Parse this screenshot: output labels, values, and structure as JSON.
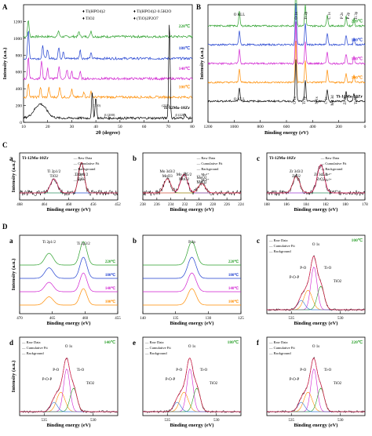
{
  "figure": {
    "section_labels": {
      "a": "A",
      "b": "B",
      "c": "C",
      "d": "D"
    }
  },
  "chart_data": [
    {
      "id": "A",
      "type": "line",
      "title": "",
      "xlabel": "2θ (degree)",
      "ylabel": "Intensity (a.u.)",
      "xlim": [
        10,
        80
      ],
      "ylim": [
        0,
        1400
      ],
      "x_ticks": [
        "10",
        "20",
        "30",
        "40",
        "50",
        "60",
        "70",
        "80"
      ],
      "y_ticks": [
        "0",
        "200",
        "400",
        "600",
        "800",
        "1000",
        "1200"
      ],
      "legend": [
        "Ti(HPO4)2",
        "Ti(HPO4)2·0.5H2O",
        "TiO2",
        "(TiO)2P2O7"
      ],
      "series": [
        {
          "name": "220℃",
          "color": "#2ca02c",
          "baseline": 1020,
          "peaks": [
            [
              12.0,
              200
            ],
            [
              24.5,
              70
            ],
            [
              33.0,
              60
            ],
            [
              38.0,
              70
            ]
          ]
        },
        {
          "name": "180℃",
          "color": "#1f3fd0",
          "baseline": 760,
          "peaks": [
            [
              12.0,
              340
            ],
            [
              18.0,
              150
            ],
            [
              20.0,
              110
            ],
            [
              24.6,
              130
            ],
            [
              26.5,
              90
            ],
            [
              33.5,
              100
            ],
            [
              38.0,
              60
            ]
          ]
        },
        {
          "name": "140℃",
          "color": "#d020d0",
          "baseline": 520,
          "peaks": [
            [
              12.0,
              260
            ],
            [
              17.5,
              220
            ],
            [
              20.0,
              120
            ],
            [
              24.7,
              150
            ],
            [
              28.0,
              110
            ],
            [
              30.0,
              90
            ],
            [
              33.5,
              80
            ]
          ]
        },
        {
          "name": "100℃",
          "color": "#ff8c00",
          "baseline": 300,
          "peaks": [
            [
              12.0,
              170
            ],
            [
              17.0,
              120
            ],
            [
              20.5,
              110
            ],
            [
              25.0,
              130
            ],
            [
              30.0,
              90
            ],
            [
              35.0,
              70
            ],
            [
              38.0,
              60
            ]
          ]
        },
        {
          "name": "Ti-12Mo-10Zr",
          "color": "#000000",
          "baseline": 50,
          "peaks": [
            [
              38.5,
              300
            ],
            [
              40.0,
              250
            ],
            [
              70.5,
              1150
            ],
            [
              77.0,
              60
            ]
          ]
        }
      ],
      "annotations": [
        "(110)",
        "β (200)",
        "(211)",
        "β (220)"
      ]
    },
    {
      "id": "B",
      "type": "line",
      "title": "",
      "xlabel": "Binding energy (eV)",
      "ylabel": "Intensity (a.u.)",
      "xlim": [
        1200,
        0
      ],
      "x_ticks": [
        "1200",
        "1000",
        "800",
        "600",
        "400",
        "200",
        "0"
      ],
      "series": [
        {
          "name": "220℃",
          "color": "#2ca02c"
        },
        {
          "name": "180℃",
          "color": "#1f3fd0"
        },
        {
          "name": "140℃",
          "color": "#d020d0"
        },
        {
          "name": "100℃",
          "color": "#ff8c00"
        },
        {
          "name": "Ti-12Mo-10Zr",
          "color": "#000000"
        }
      ],
      "peak_labels_top": [
        "O KLL",
        "O 1s",
        "Ti 2p",
        "C 1s",
        "P 2s",
        "P 2p",
        "Ti 3p"
      ],
      "peak_labels_bottom": [
        "O KLL",
        "O 1s",
        "Ti 2p",
        "N 1s",
        "C 1s",
        "Mo 3d",
        "Zr 3d",
        "Ti 3p"
      ]
    },
    {
      "id": "C-a",
      "type": "line",
      "inner_title": "Ti-12Mo-10Zr",
      "xlabel": "Binding energy (eV)",
      "ylabel": "Intensity (a.u.)",
      "xlim": [
        468,
        452
      ],
      "x_ticks": [
        "468",
        "464",
        "460",
        "456",
        "452"
      ],
      "legend": [
        "Raw Data",
        "Cumulative Fit",
        "Background",
        "Ti⁴⁺",
        "Ti⁰⁺"
      ],
      "peak_labels": [
        "Ti 2p1/2",
        "TiO2",
        "Ti 2p3/2",
        "TiO2"
      ]
    },
    {
      "id": "C-b",
      "type": "line",
      "xlabel": "Binding energy (eV)",
      "xlim": [
        238,
        224
      ],
      "x_ticks": [
        "238",
        "236",
        "234",
        "232",
        "230",
        "228",
        "226",
        "224"
      ],
      "legend": [
        "Raw Data",
        "Cumulative Fit",
        "Background",
        "Mo⁶⁺",
        "Mo⁴⁺",
        "Mo⁰⁺",
        "Mo⁰⁺"
      ],
      "peak_labels": [
        "Mo 3d3/2",
        "MoO3",
        "Mo 3d5/2",
        "MoO2",
        "MoO2",
        "MoO2"
      ]
    },
    {
      "id": "C-c",
      "type": "line",
      "inner_title": "Ti-12Mo-10Zr",
      "xlabel": "Binding energy (eV)",
      "xlim": [
        188,
        178
      ],
      "x_ticks": [
        "188",
        "186",
        "184",
        "182",
        "180",
        "178"
      ],
      "legend": [
        "Raw Data",
        "Cumulative Fit",
        "Background",
        "Zr⁴⁺",
        "Zr⁰⁺"
      ],
      "peak_labels": [
        "Zr 3d3/2",
        "ZrO2",
        "Zr 3d5/2",
        "ZrO2"
      ]
    },
    {
      "id": "D-a",
      "type": "line",
      "xlabel": "Binding energy (eV)",
      "ylabel": "Intensity (a.u.)",
      "xlim": [
        470,
        455
      ],
      "x_ticks": [
        "470",
        "465",
        "460",
        "455"
      ],
      "peak_labels": [
        "Ti 2p1/2",
        "Ti 2p3/2"
      ],
      "series": [
        {
          "name": "220℃",
          "color": "#2ca02c"
        },
        {
          "name": "180℃",
          "color": "#1f3fd0"
        },
        {
          "name": "140℃",
          "color": "#d020d0"
        },
        {
          "name": "100℃",
          "color": "#ff8c00"
        }
      ]
    },
    {
      "id": "D-b",
      "type": "line",
      "xlabel": "Binding energy (eV)",
      "xlim": [
        140,
        125
      ],
      "x_ticks": [
        "140",
        "135",
        "130",
        "125"
      ],
      "peak_labels": [
        "P 2p"
      ],
      "series": [
        {
          "name": "220℃",
          "color": "#2ca02c"
        },
        {
          "name": "180℃",
          "color": "#1f3fd0"
        },
        {
          "name": "140℃",
          "color": "#d020d0"
        },
        {
          "name": "100℃",
          "color": "#ff8c00"
        }
      ]
    },
    {
      "id": "D-c",
      "type": "line",
      "inner_title": "100℃",
      "xlabel": "Binding energy (eV)",
      "xlim": [
        538,
        526
      ],
      "x_ticks": [
        "535",
        "530"
      ],
      "legend": [
        "Raw Data",
        "Cumulative Fit",
        "Background"
      ],
      "peak_labels": [
        "O 1s",
        "P-O",
        "Ti-O",
        "P-O-P",
        "TiO2"
      ]
    },
    {
      "id": "D-d",
      "type": "line",
      "inner_title": "140℃",
      "xlabel": "Binding energy (eV)",
      "ylabel": "Intensity (a.u.)",
      "xlim": [
        538,
        526
      ],
      "x_ticks": [
        "535",
        "530"
      ],
      "legend": [
        "Raw Data",
        "Cumulative Fit",
        "Background"
      ],
      "peak_labels": [
        "O 1s",
        "P-O",
        "Ti-O",
        "P-O-P",
        "TiO2"
      ]
    },
    {
      "id": "D-e",
      "type": "line",
      "inner_title": "180℃",
      "xlabel": "Binding energy (eV)",
      "xlim": [
        538,
        526
      ],
      "x_ticks": [
        "535",
        "530"
      ],
      "legend": [
        "Raw Data",
        "Cumulative Fit",
        "Background"
      ],
      "peak_labels": [
        "O 1s",
        "P-O",
        "Ti-O",
        "P-O-P",
        "TiO2"
      ]
    },
    {
      "id": "D-f",
      "type": "line",
      "inner_title": "220℃",
      "xlabel": "Binding energy (eV)",
      "xlim": [
        538,
        526
      ],
      "x_ticks": [
        "535",
        "530"
      ],
      "legend": [
        "Raw Data",
        "Cumulative Fit",
        "Background"
      ],
      "peak_labels": [
        "O 1s",
        "P-O",
        "Ti-O",
        "P-O-P",
        "TiO2"
      ]
    }
  ]
}
